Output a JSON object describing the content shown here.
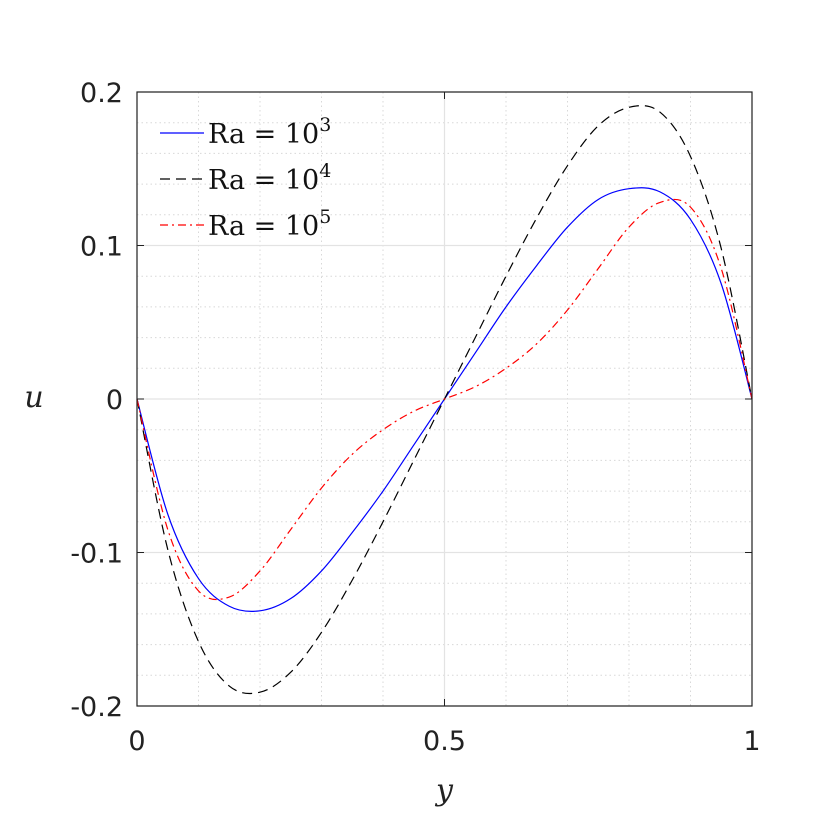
{
  "chart_data": {
    "type": "line",
    "xlabel": "y",
    "ylabel": "u",
    "xlim": [
      0,
      1
    ],
    "ylim": [
      -0.2,
      0.2
    ],
    "xticks": [
      0,
      0.5,
      1
    ],
    "xtick_labels": [
      "0",
      "0.5",
      "1"
    ],
    "yticks": [
      -0.2,
      -0.1,
      0,
      0.1,
      0.2
    ],
    "ytick_labels": [
      "-0.2",
      "-0.1",
      "0",
      "0.1",
      "0.2"
    ],
    "grid": true,
    "minor_grid": true,
    "legend_position": "top-left",
    "x": [
      0,
      0.05,
      0.1,
      0.15,
      0.2,
      0.25,
      0.3,
      0.35,
      0.4,
      0.45,
      0.5,
      0.55,
      0.6,
      0.65,
      0.7,
      0.75,
      0.8,
      0.85,
      0.9,
      0.95,
      1
    ],
    "series": [
      {
        "name_base": "Ra = 10",
        "name_exp": "3",
        "color": "#0000ff",
        "dash": "solid",
        "values": [
          0,
          -0.075,
          -0.117,
          -0.135,
          -0.138,
          -0.13,
          -0.112,
          -0.087,
          -0.06,
          -0.03,
          0,
          0.03,
          0.06,
          0.087,
          0.112,
          0.13,
          0.137,
          0.135,
          0.117,
          0.075,
          0
        ]
      },
      {
        "name_base": "Ra = 10",
        "name_exp": "4",
        "color": "#000000",
        "dash": "dashed",
        "values": [
          0,
          -0.098,
          -0.158,
          -0.187,
          -0.191,
          -0.178,
          -0.152,
          -0.118,
          -0.08,
          -0.04,
          0,
          0.04,
          0.08,
          0.118,
          0.152,
          0.178,
          0.19,
          0.187,
          0.158,
          0.098,
          0
        ]
      },
      {
        "name_base": "Ra = 10",
        "name_exp": "5",
        "color": "#ff0000",
        "dash": "dashdot",
        "values": [
          0,
          -0.085,
          -0.125,
          -0.129,
          -0.112,
          -0.085,
          -0.058,
          -0.036,
          -0.02,
          -0.008,
          0,
          0.008,
          0.02,
          0.036,
          0.058,
          0.085,
          0.112,
          0.128,
          0.125,
          0.085,
          0
        ]
      }
    ]
  }
}
